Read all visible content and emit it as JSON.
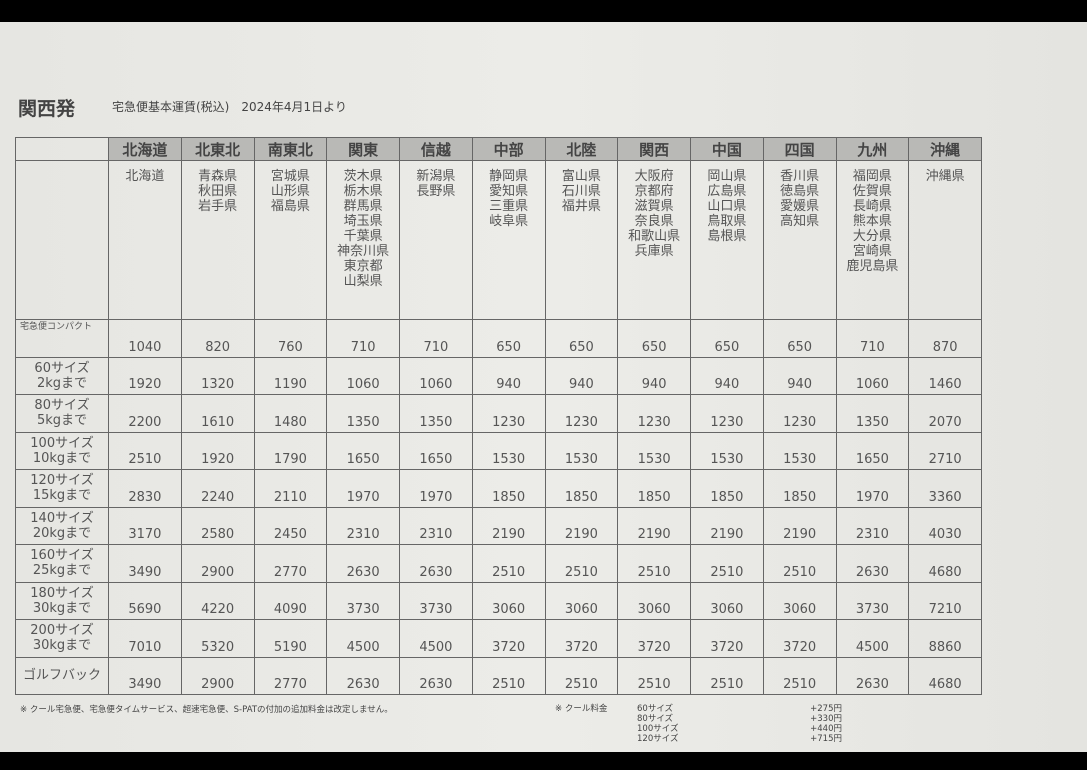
{
  "header": {
    "title": "関西発",
    "subtitle": "宅急便基本運賃(税込)　2024年4月1日より"
  },
  "regions": [
    "北海道",
    "北東北",
    "南東北",
    "関東",
    "信越",
    "中部",
    "北陸",
    "関西",
    "中国",
    "四国",
    "九州",
    "沖縄"
  ],
  "prefectures": [
    "北海道",
    "青森県\n秋田県\n岩手県",
    "宮城県\n山形県\n福島県",
    "茨木県\n栃木県\n群馬県\n埼玉県\n千葉県\n神奈川県\n東京都\n山梨県",
    "新潟県\n長野県",
    "静岡県\n愛知県\n三重県\n岐阜県",
    "富山県\n石川県\n福井県",
    "大阪府\n京都府\n滋賀県\n奈良県\n和歌山県\n兵庫県",
    "岡山県\n広島県\n山口県\n鳥取県\n島根県",
    "香川県\n徳島県\n愛媛県\n高知県",
    "福岡県\n佐賀県\n長崎県\n熊本県\n大分県\n宮崎県\n鹿児島県",
    "沖縄県"
  ],
  "rows": [
    {
      "label": "宅急便コンパクト",
      "values": [
        "1040",
        "820",
        "760",
        "710",
        "710",
        "650",
        "650",
        "650",
        "650",
        "650",
        "710",
        "870"
      ]
    },
    {
      "label": "60サイズ\n2kgまで",
      "values": [
        "1920",
        "1320",
        "1190",
        "1060",
        "1060",
        "940",
        "940",
        "940",
        "940",
        "940",
        "1060",
        "1460"
      ]
    },
    {
      "label": "80サイズ\n5kgまで",
      "values": [
        "2200",
        "1610",
        "1480",
        "1350",
        "1350",
        "1230",
        "1230",
        "1230",
        "1230",
        "1230",
        "1350",
        "2070"
      ]
    },
    {
      "label": "100サイズ\n10kgまで",
      "values": [
        "2510",
        "1920",
        "1790",
        "1650",
        "1650",
        "1530",
        "1530",
        "1530",
        "1530",
        "1530",
        "1650",
        "2710"
      ]
    },
    {
      "label": "120サイズ\n15kgまで",
      "values": [
        "2830",
        "2240",
        "2110",
        "1970",
        "1970",
        "1850",
        "1850",
        "1850",
        "1850",
        "1850",
        "1970",
        "3360"
      ]
    },
    {
      "label": "140サイズ\n20kgまで",
      "values": [
        "3170",
        "2580",
        "2450",
        "2310",
        "2310",
        "2190",
        "2190",
        "2190",
        "2190",
        "2190",
        "2310",
        "4030"
      ]
    },
    {
      "label": "160サイズ\n25kgまで",
      "values": [
        "3490",
        "2900",
        "2770",
        "2630",
        "2630",
        "2510",
        "2510",
        "2510",
        "2510",
        "2510",
        "2630",
        "4680"
      ]
    },
    {
      "label": "180サイズ\n30kgまで",
      "values": [
        "5690",
        "4220",
        "4090",
        "3730",
        "3730",
        "3060",
        "3060",
        "3060",
        "3060",
        "3060",
        "3730",
        "7210"
      ]
    },
    {
      "label": "200サイズ\n30kgまで",
      "values": [
        "7010",
        "5320",
        "5190",
        "4500",
        "4500",
        "3720",
        "3720",
        "3720",
        "3720",
        "3720",
        "4500",
        "8860"
      ]
    },
    {
      "label": "ゴルフバック",
      "values": [
        "3490",
        "2900",
        "2770",
        "2630",
        "2630",
        "2510",
        "2510",
        "2510",
        "2510",
        "2510",
        "2630",
        "4680"
      ]
    }
  ],
  "footer": {
    "note": "※ クール宅急便、宅急便タイムサービス、超速宅急便、S-PATの付加の追加料金は改定しません。",
    "cool_label": "※ クール料金",
    "cool_fees": [
      {
        "size": "60サイズ",
        "fee": "+275円"
      },
      {
        "size": "80サイズ",
        "fee": "+330円"
      },
      {
        "size": "100サイズ",
        "fee": "+440円"
      },
      {
        "size": "120サイズ",
        "fee": "+715円"
      }
    ]
  }
}
